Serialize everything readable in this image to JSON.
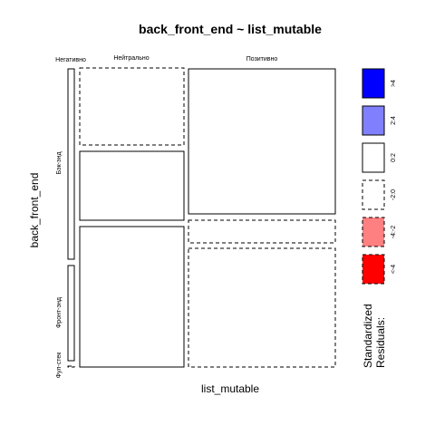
{
  "chart_data": {
    "type": "mosaic",
    "title": "back_front_end ~ list_mutable",
    "xlabel": "list_mutable",
    "ylabel": "back_front_end",
    "x_categories": [
      "Негативно",
      "Нейтрально",
      "Позитивно"
    ],
    "y_categories": [
      "Бэк-энд",
      "Фронт-энд",
      "Фул-стек"
    ],
    "cells": [
      {
        "x": "Негативно",
        "y": "Бэк-энд",
        "residual_class": "0:2"
      },
      {
        "x": "Негативно",
        "y": "Фронт-энд",
        "residual_class": "0:2"
      },
      {
        "x": "Негативно",
        "y": "Фул-стек",
        "residual_class": "-2:0"
      },
      {
        "x": "Нейтрально",
        "y": "Бэк-энд",
        "residual_class": "-2:0"
      },
      {
        "x": "Нейтрально",
        "y": "Фронт-энд",
        "residual_class": "0:2"
      },
      {
        "x": "Нейтрально",
        "y": "Фул-стек",
        "residual_class": "0:2"
      },
      {
        "x": "Позитивно",
        "y": "Бэк-энд",
        "residual_class": "0:2"
      },
      {
        "x": "Позитивно",
        "y": "Фронт-энд",
        "residual_class": "-2:0"
      },
      {
        "x": "Позитивно",
        "y": "Фул-стек",
        "residual_class": "-2:0"
      }
    ],
    "legend": {
      "title_line1": "Standardized",
      "title_line2": "Residuals:",
      "placement": "right",
      "items": [
        {
          "label": ">4",
          "fill": "#0000ff",
          "dashed": false
        },
        {
          "label": "2:4",
          "fill": "#8080ff",
          "dashed": false
        },
        {
          "label": "0:2",
          "fill": "#ffffff",
          "dashed": false
        },
        {
          "label": "-2:0",
          "fill": "#ffffff",
          "dashed": true
        },
        {
          "label": "-4:-2",
          "fill": "#ff8080",
          "dashed": true
        },
        {
          "label": "<-4",
          "fill": "#ff0000",
          "dashed": true
        }
      ]
    }
  }
}
